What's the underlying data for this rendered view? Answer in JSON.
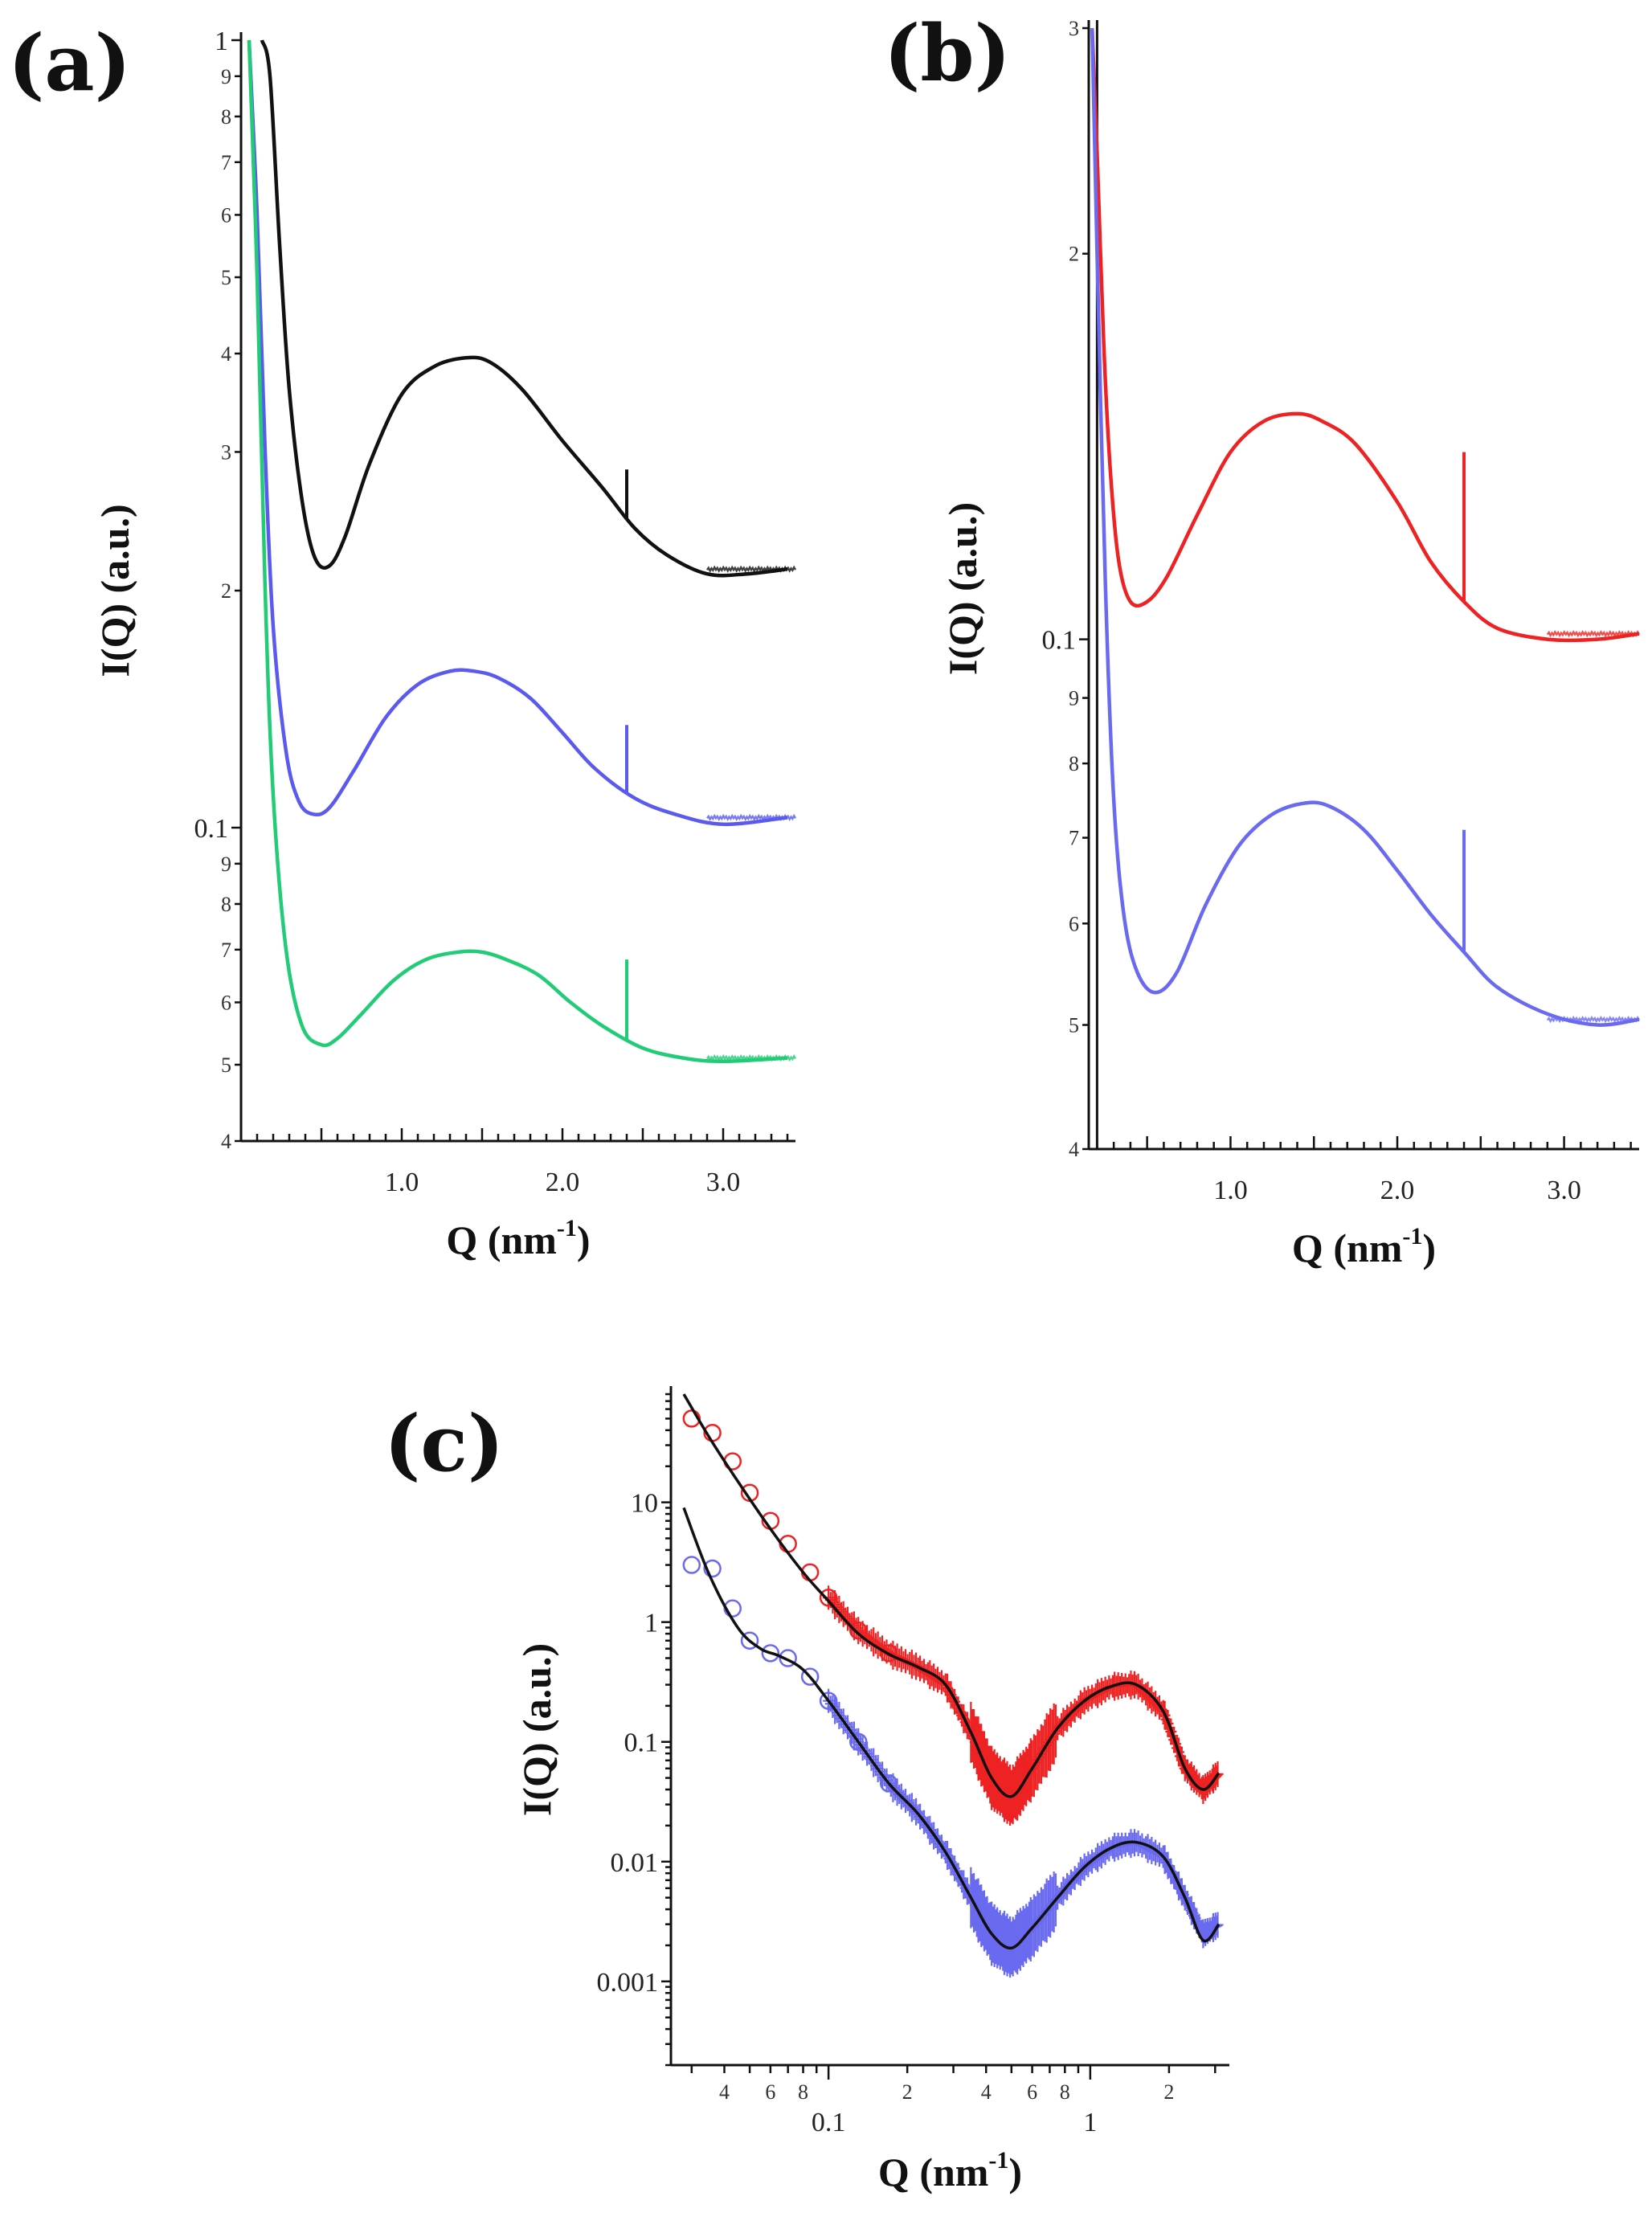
{
  "chart_data": [
    {
      "panel_label": "(a)",
      "type": "line",
      "xscale": "linear",
      "yscale": "log",
      "xlabel": "Q (nm",
      "xlabel_sup": "-1",
      "xlabel_end": ")",
      "ylabel": "I(Q) (a.u.)",
      "xlim": [
        0.0,
        3.45
      ],
      "ylim": [
        0.04,
        1.0
      ],
      "x_ticks": [
        "1.0",
        "2.0",
        "3.0"
      ],
      "x_tick_values": [
        1.0,
        2.0,
        3.0
      ],
      "y_major_ticks": [
        {
          "label": "0.1",
          "value": 0.1
        },
        {
          "label": "1",
          "value": 1.0
        }
      ],
      "y_minor_ticks": [
        {
          "label": "4",
          "value": 0.04
        },
        {
          "label": "5",
          "value": 0.05
        },
        {
          "label": "6",
          "value": 0.06
        },
        {
          "label": "7",
          "value": 0.07
        },
        {
          "label": "8",
          "value": 0.08
        },
        {
          "label": "9",
          "value": 0.09
        },
        {
          "label": "2",
          "value": 0.2
        },
        {
          "label": "3",
          "value": 0.3
        },
        {
          "label": "4",
          "value": 0.4
        },
        {
          "label": "5",
          "value": 0.5
        },
        {
          "label": "6",
          "value": 0.6
        },
        {
          "label": "7",
          "value": 0.7
        },
        {
          "label": "8",
          "value": 0.8
        },
        {
          "label": "9",
          "value": 0.9
        }
      ],
      "series": [
        {
          "name": "black",
          "color": "#111111",
          "spike_x": 2.4,
          "spike_top": 0.285,
          "x": [
            0.13,
            0.18,
            0.24,
            0.3,
            0.38,
            0.46,
            0.55,
            0.65,
            0.8,
            1.0,
            1.2,
            1.4,
            1.55,
            1.75,
            2.0,
            2.25,
            2.45,
            2.65,
            2.9,
            3.15,
            3.4
          ],
          "y": [
            1.0,
            0.9,
            0.55,
            0.36,
            0.26,
            0.22,
            0.215,
            0.235,
            0.29,
            0.355,
            0.385,
            0.395,
            0.39,
            0.36,
            0.31,
            0.27,
            0.24,
            0.222,
            0.21,
            0.21,
            0.213
          ]
        },
        {
          "name": "blue",
          "color": "#5a5aee",
          "spike_x": 2.4,
          "spike_top": 0.135,
          "x": [
            0.05,
            0.1,
            0.15,
            0.2,
            0.28,
            0.36,
            0.45,
            0.55,
            0.7,
            0.9,
            1.1,
            1.3,
            1.45,
            1.6,
            1.8,
            2.0,
            2.2,
            2.45,
            2.7,
            3.0,
            3.4
          ],
          "y": [
            1.0,
            0.6,
            0.3,
            0.18,
            0.125,
            0.108,
            0.104,
            0.106,
            0.118,
            0.138,
            0.152,
            0.158,
            0.158,
            0.155,
            0.146,
            0.132,
            0.119,
            0.109,
            0.104,
            0.101,
            0.103
          ]
        },
        {
          "name": "green",
          "color": "#22cc77",
          "spike_x": 2.4,
          "spike_top": 0.068,
          "x": [
            0.05,
            0.1,
            0.15,
            0.2,
            0.28,
            0.38,
            0.5,
            0.6,
            0.75,
            0.95,
            1.15,
            1.35,
            1.5,
            1.65,
            1.85,
            2.05,
            2.25,
            2.5,
            2.75,
            3.0,
            3.4
          ],
          "y": [
            1.0,
            0.5,
            0.2,
            0.11,
            0.07,
            0.056,
            0.053,
            0.054,
            0.058,
            0.064,
            0.068,
            0.0695,
            0.0695,
            0.068,
            0.065,
            0.06,
            0.056,
            0.0525,
            0.051,
            0.0505,
            0.051
          ]
        }
      ]
    },
    {
      "panel_label": "(b)",
      "type": "line",
      "xscale": "linear",
      "yscale": "log",
      "xlabel": "Q (nm",
      "xlabel_sup": "-1",
      "xlabel_end": ")",
      "ylabel": "I(Q) (a.u.)",
      "xlim": [
        0.15,
        3.45
      ],
      "ylim": [
        0.04,
        0.3
      ],
      "x_ticks": [
        "1.0",
        "2.0",
        "3.0"
      ],
      "x_tick_values": [
        1.0,
        2.0,
        3.0
      ],
      "vertical_line_x": 0.2,
      "y_major_ticks": [
        {
          "label": "0.1",
          "value": 0.1
        }
      ],
      "y_minor_ticks": [
        {
          "label": "4",
          "value": 0.04
        },
        {
          "label": "5",
          "value": 0.05
        },
        {
          "label": "6",
          "value": 0.06
        },
        {
          "label": "7",
          "value": 0.07
        },
        {
          "label": "8",
          "value": 0.08
        },
        {
          "label": "9",
          "value": 0.09
        },
        {
          "label": "2",
          "value": 0.2
        },
        {
          "label": "3",
          "value": 0.3
        }
      ],
      "series": [
        {
          "name": "red",
          "color": "#ee2222",
          "spike_x": 2.4,
          "spike_top": 0.14,
          "x": [
            0.17,
            0.2,
            0.24,
            0.28,
            0.33,
            0.4,
            0.5,
            0.62,
            0.8,
            1.0,
            1.2,
            1.4,
            1.55,
            1.75,
            2.0,
            2.2,
            2.4,
            2.6,
            2.9,
            3.2,
            3.45
          ],
          "y": [
            0.3,
            0.24,
            0.17,
            0.135,
            0.115,
            0.107,
            0.107,
            0.112,
            0.125,
            0.14,
            0.148,
            0.15,
            0.148,
            0.142,
            0.128,
            0.115,
            0.107,
            0.102,
            0.1,
            0.1,
            0.101
          ]
        },
        {
          "name": "blue",
          "color": "#6a6af0",
          "spike_x": 2.4,
          "spike_top": 0.071,
          "x": [
            0.17,
            0.2,
            0.25,
            0.3,
            0.36,
            0.44,
            0.55,
            0.68,
            0.85,
            1.05,
            1.25,
            1.45,
            1.6,
            1.8,
            2.0,
            2.2,
            2.4,
            2.6,
            2.9,
            3.2,
            3.45
          ],
          "y": [
            0.3,
            0.2,
            0.11,
            0.075,
            0.061,
            0.055,
            0.053,
            0.055,
            0.062,
            0.069,
            0.073,
            0.0745,
            0.074,
            0.071,
            0.066,
            0.061,
            0.057,
            0.0535,
            0.051,
            0.05,
            0.0505
          ]
        }
      ]
    },
    {
      "panel_label": "(c)",
      "type": "scatter",
      "xscale": "log",
      "yscale": "log",
      "xlabel": "Q (nm",
      "xlabel_sup": "-1",
      "xlabel_end": ")",
      "ylabel": "I(Q) (a.u.)",
      "xlim": [
        0.025,
        3.4
      ],
      "ylim": [
        0.0002,
        80
      ],
      "y_major_ticks": [
        {
          "label": "0.001",
          "value": 0.001
        },
        {
          "label": "0.01",
          "value": 0.01
        },
        {
          "label": "0.1",
          "value": 0.1
        },
        {
          "label": "1",
          "value": 1
        },
        {
          "label": "10",
          "value": 10
        }
      ],
      "x_major_ticks": [
        {
          "label": "0.1",
          "value": 0.1
        },
        {
          "label": "1",
          "value": 1
        }
      ],
      "x_minor_labels": [
        {
          "label": "4",
          "value": 0.04
        },
        {
          "label": "6",
          "value": 0.06
        },
        {
          "label": "8",
          "value": 0.08
        },
        {
          "label": "2",
          "value": 0.2
        },
        {
          "label": "4",
          "value": 0.4
        },
        {
          "label": "6",
          "value": 0.6
        },
        {
          "label": "8",
          "value": 0.8
        },
        {
          "label": "2",
          "value": 2
        }
      ],
      "series": [
        {
          "name": "red data",
          "color": "#ee2222",
          "x": [
            0.03,
            0.036,
            0.043,
            0.05,
            0.06,
            0.07,
            0.085,
            0.1,
            0.13,
            0.17,
            0.22,
            0.28,
            0.35,
            0.42,
            0.5,
            0.6,
            0.75,
            0.95,
            1.2,
            1.5,
            1.9,
            2.3,
            2.7,
            3.1
          ],
          "y": [
            50,
            38,
            22,
            12,
            7,
            4.5,
            2.6,
            1.6,
            0.85,
            0.55,
            0.42,
            0.3,
            0.12,
            0.05,
            0.035,
            0.06,
            0.13,
            0.22,
            0.29,
            0.3,
            0.18,
            0.06,
            0.04,
            0.055
          ]
        },
        {
          "name": "blue data",
          "color": "#6a6af0",
          "x": [
            0.03,
            0.036,
            0.043,
            0.05,
            0.06,
            0.07,
            0.085,
            0.1,
            0.13,
            0.17,
            0.22,
            0.28,
            0.35,
            0.42,
            0.5,
            0.6,
            0.75,
            0.95,
            1.2,
            1.5,
            1.9,
            2.3,
            2.7,
            3.1
          ],
          "y": [
            3.0,
            2.8,
            1.3,
            0.7,
            0.55,
            0.5,
            0.35,
            0.22,
            0.1,
            0.045,
            0.025,
            0.012,
            0.005,
            0.0025,
            0.0019,
            0.0028,
            0.005,
            0.009,
            0.013,
            0.0145,
            0.011,
            0.005,
            0.0025,
            0.003
          ]
        },
        {
          "name": "red fit",
          "color": "#111111",
          "fit": true,
          "x": [
            0.028,
            0.035,
            0.045,
            0.06,
            0.08,
            0.1,
            0.13,
            0.17,
            0.22,
            0.28,
            0.35,
            0.42,
            0.5,
            0.6,
            0.75,
            0.95,
            1.2,
            1.5,
            1.9,
            2.3,
            2.7,
            3.1
          ],
          "y": [
            80,
            35,
            15,
            6.0,
            2.6,
            1.5,
            0.8,
            0.54,
            0.42,
            0.3,
            0.12,
            0.05,
            0.035,
            0.06,
            0.13,
            0.22,
            0.29,
            0.3,
            0.18,
            0.06,
            0.04,
            0.055
          ]
        },
        {
          "name": "blue fit",
          "color": "#111111",
          "fit": true,
          "x": [
            0.028,
            0.035,
            0.045,
            0.055,
            0.065,
            0.08,
            0.1,
            0.13,
            0.17,
            0.22,
            0.28,
            0.35,
            0.42,
            0.5,
            0.6,
            0.75,
            0.95,
            1.2,
            1.5,
            1.9,
            2.3,
            2.7,
            3.1
          ],
          "y": [
            9,
            2.5,
            0.9,
            0.6,
            0.52,
            0.4,
            0.22,
            0.1,
            0.045,
            0.025,
            0.012,
            0.005,
            0.0025,
            0.0019,
            0.0028,
            0.005,
            0.009,
            0.013,
            0.0145,
            0.011,
            0.005,
            0.0022,
            0.003
          ]
        }
      ]
    }
  ]
}
